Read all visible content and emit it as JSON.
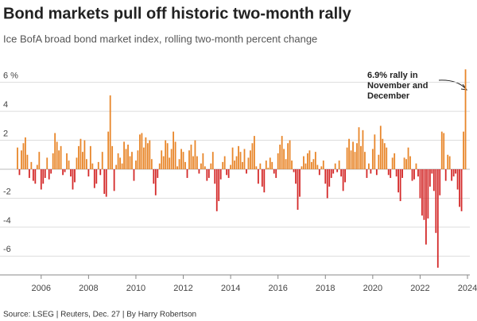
{
  "chart_data": {
    "type": "bar",
    "title": "Bond markets pull off historic two-month rally",
    "subtitle": "Ice BofA broad bond market index, rolling two-month percent change",
    "source": "Source: LSEG | Reuters, Dec. 27 | By Harry Robertson",
    "annotation": [
      "6.9% rally in",
      "November and",
      "December"
    ],
    "positive_color": "#e8862a",
    "negative_color": "#d42a2a",
    "grid": true,
    "xlim": [
      2005,
      2024.1
    ],
    "xticks": [
      2006,
      2008,
      2010,
      2012,
      2014,
      2016,
      2018,
      2020,
      2022,
      2024
    ],
    "ylim": [
      -7.3,
      7.3
    ],
    "yticks": [
      -6,
      -4,
      -2,
      2,
      4,
      {
        "value": 6,
        "label": "6 %"
      }
    ],
    "x": [
      2005,
      2005.083,
      2005.167,
      2005.25,
      2005.333,
      2005.417,
      2005.5,
      2005.583,
      2005.667,
      2005.75,
      2005.833,
      2005.917,
      2006,
      2006.083,
      2006.167,
      2006.25,
      2006.333,
      2006.417,
      2006.5,
      2006.583,
      2006.667,
      2006.75,
      2006.833,
      2006.917,
      2007,
      2007.083,
      2007.167,
      2007.25,
      2007.333,
      2007.417,
      2007.5,
      2007.583,
      2007.667,
      2007.75,
      2007.833,
      2007.917,
      2008,
      2008.083,
      2008.167,
      2008.25,
      2008.333,
      2008.417,
      2008.5,
      2008.583,
      2008.667,
      2008.75,
      2008.833,
      2008.917,
      2009,
      2009.083,
      2009.167,
      2009.25,
      2009.333,
      2009.417,
      2009.5,
      2009.583,
      2009.667,
      2009.75,
      2009.833,
      2009.917,
      2010,
      2010.083,
      2010.167,
      2010.25,
      2010.333,
      2010.417,
      2010.5,
      2010.583,
      2010.667,
      2010.75,
      2010.833,
      2010.917,
      2011,
      2011.083,
      2011.167,
      2011.25,
      2011.333,
      2011.417,
      2011.5,
      2011.583,
      2011.667,
      2011.75,
      2011.833,
      2011.917,
      2012,
      2012.083,
      2012.167,
      2012.25,
      2012.333,
      2012.417,
      2012.5,
      2012.583,
      2012.667,
      2012.75,
      2012.833,
      2012.917,
      2013,
      2013.083,
      2013.167,
      2013.25,
      2013.333,
      2013.417,
      2013.5,
      2013.583,
      2013.667,
      2013.75,
      2013.833,
      2013.917,
      2014,
      2014.083,
      2014.167,
      2014.25,
      2014.333,
      2014.417,
      2014.5,
      2014.583,
      2014.667,
      2014.75,
      2014.833,
      2014.917,
      2015,
      2015.083,
      2015.167,
      2015.25,
      2015.333,
      2015.417,
      2015.5,
      2015.583,
      2015.667,
      2015.75,
      2015.833,
      2015.917,
      2016,
      2016.083,
      2016.167,
      2016.25,
      2016.333,
      2016.417,
      2016.5,
      2016.583,
      2016.667,
      2016.75,
      2016.833,
      2016.917,
      2017,
      2017.083,
      2017.167,
      2017.25,
      2017.333,
      2017.417,
      2017.5,
      2017.583,
      2017.667,
      2017.75,
      2017.833,
      2017.917,
      2018,
      2018.083,
      2018.167,
      2018.25,
      2018.333,
      2018.417,
      2018.5,
      2018.583,
      2018.667,
      2018.75,
      2018.833,
      2018.917,
      2019,
      2019.083,
      2019.167,
      2019.25,
      2019.333,
      2019.417,
      2019.5,
      2019.583,
      2019.667,
      2019.75,
      2019.833,
      2019.917,
      2020,
      2020.083,
      2020.167,
      2020.25,
      2020.333,
      2020.417,
      2020.5,
      2020.583,
      2020.667,
      2020.75,
      2020.833,
      2020.917,
      2021,
      2021.083,
      2021.167,
      2021.25,
      2021.333,
      2021.417,
      2021.5,
      2021.583,
      2021.667,
      2021.75,
      2021.833,
      2021.917,
      2022,
      2022.083,
      2022.167,
      2022.25,
      2022.333,
      2022.417,
      2022.5,
      2022.583,
      2022.667,
      2022.75,
      2022.833,
      2022.917,
      2023,
      2023.083,
      2023.167,
      2023.25,
      2023.333,
      2023.417,
      2023.5,
      2023.583,
      2023.667,
      2023.75,
      2023.833,
      2023.917
    ],
    "values": [
      1.5,
      -0.4,
      1.3,
      1.8,
      2.2,
      1.0,
      -0.6,
      0.5,
      -0.8,
      -1.0,
      0.3,
      1.2,
      -1.4,
      -1.0,
      -0.6,
      0.8,
      -0.7,
      -0.3,
      1.1,
      2.5,
      1.9,
      1.3,
      1.6,
      -0.4,
      -0.2,
      1.1,
      0.6,
      -0.5,
      -1.4,
      -0.9,
      0.8,
      1.6,
      2.1,
      1.2,
      2.0,
      0.7,
      -0.5,
      1.6,
      0.4,
      -1.3,
      -1.0,
      0.5,
      -0.4,
      1.2,
      -1.7,
      -1.9,
      2.6,
      5.1,
      1.6,
      -1.5,
      0.3,
      1.1,
      0.8,
      0.4,
      1.9,
      1.4,
      1.7,
      0.9,
      1.2,
      -0.8,
      0.6,
      1.3,
      2.4,
      2.5,
      1.5,
      2.2,
      1.8,
      2.0,
      0.7,
      -1.0,
      -1.8,
      -0.6,
      0.4,
      1.3,
      0.9,
      2.0,
      1.8,
      0.8,
      1.4,
      2.6,
      1.9,
      0.2,
      0.7,
      1.4,
      1.2,
      0.5,
      -0.6,
      1.3,
      1.7,
      0.9,
      2.0,
      0.9,
      -0.3,
      0.4,
      1.1,
      0.2,
      -0.8,
      -0.6,
      0.4,
      1.2,
      -1.0,
      -2.9,
      -2.2,
      -0.7,
      0.5,
      0.9,
      -0.4,
      -0.6,
      0.3,
      1.5,
      0.6,
      0.9,
      1.6,
      1.2,
      0.5,
      1.4,
      -0.3,
      0.8,
      1.3,
      1.8,
      2.3,
      0.2,
      -1.0,
      0.4,
      -1.2,
      -1.6,
      0.6,
      0.1,
      0.8,
      0.5,
      -0.3,
      -0.6,
      1.1,
      1.7,
      2.3,
      1.4,
      0.7,
      1.8,
      2.0,
      0.6,
      -0.2,
      -1.0,
      -2.8,
      -1.9,
      0.2,
      0.9,
      0.4,
      1.1,
      1.3,
      0.5,
      0.7,
      1.2,
      0.3,
      -0.4,
      0.2,
      0.6,
      -1.0,
      -2.0,
      -1.2,
      -0.6,
      -0.3,
      0.4,
      -0.2,
      0.6,
      -0.5,
      -1.5,
      -0.9,
      1.5,
      2.1,
      1.3,
      1.9,
      1.2,
      1.8,
      2.9,
      1.6,
      2.7,
      1.2,
      -0.6,
      0.4,
      -0.3,
      1.4,
      2.4,
      -0.4,
      1.0,
      3.0,
      2.1,
      1.8,
      1.5,
      -0.4,
      -0.6,
      0.8,
      1.1,
      -0.5,
      -1.6,
      -2.2,
      -0.6,
      0.8,
      0.7,
      1.5,
      0.9,
      -0.8,
      -0.7,
      0.4,
      -0.5,
      -2.0,
      -3.2,
      -3.5,
      -5.2,
      -3.4,
      -1.2,
      -0.3,
      -1.5,
      -4.4,
      -6.8,
      -1.8,
      2.6,
      2.5,
      -0.8,
      1.0,
      0.9,
      -0.8,
      -0.5,
      -0.3,
      -1.4,
      -2.6,
      -2.9,
      2.6,
      6.9
    ]
  }
}
